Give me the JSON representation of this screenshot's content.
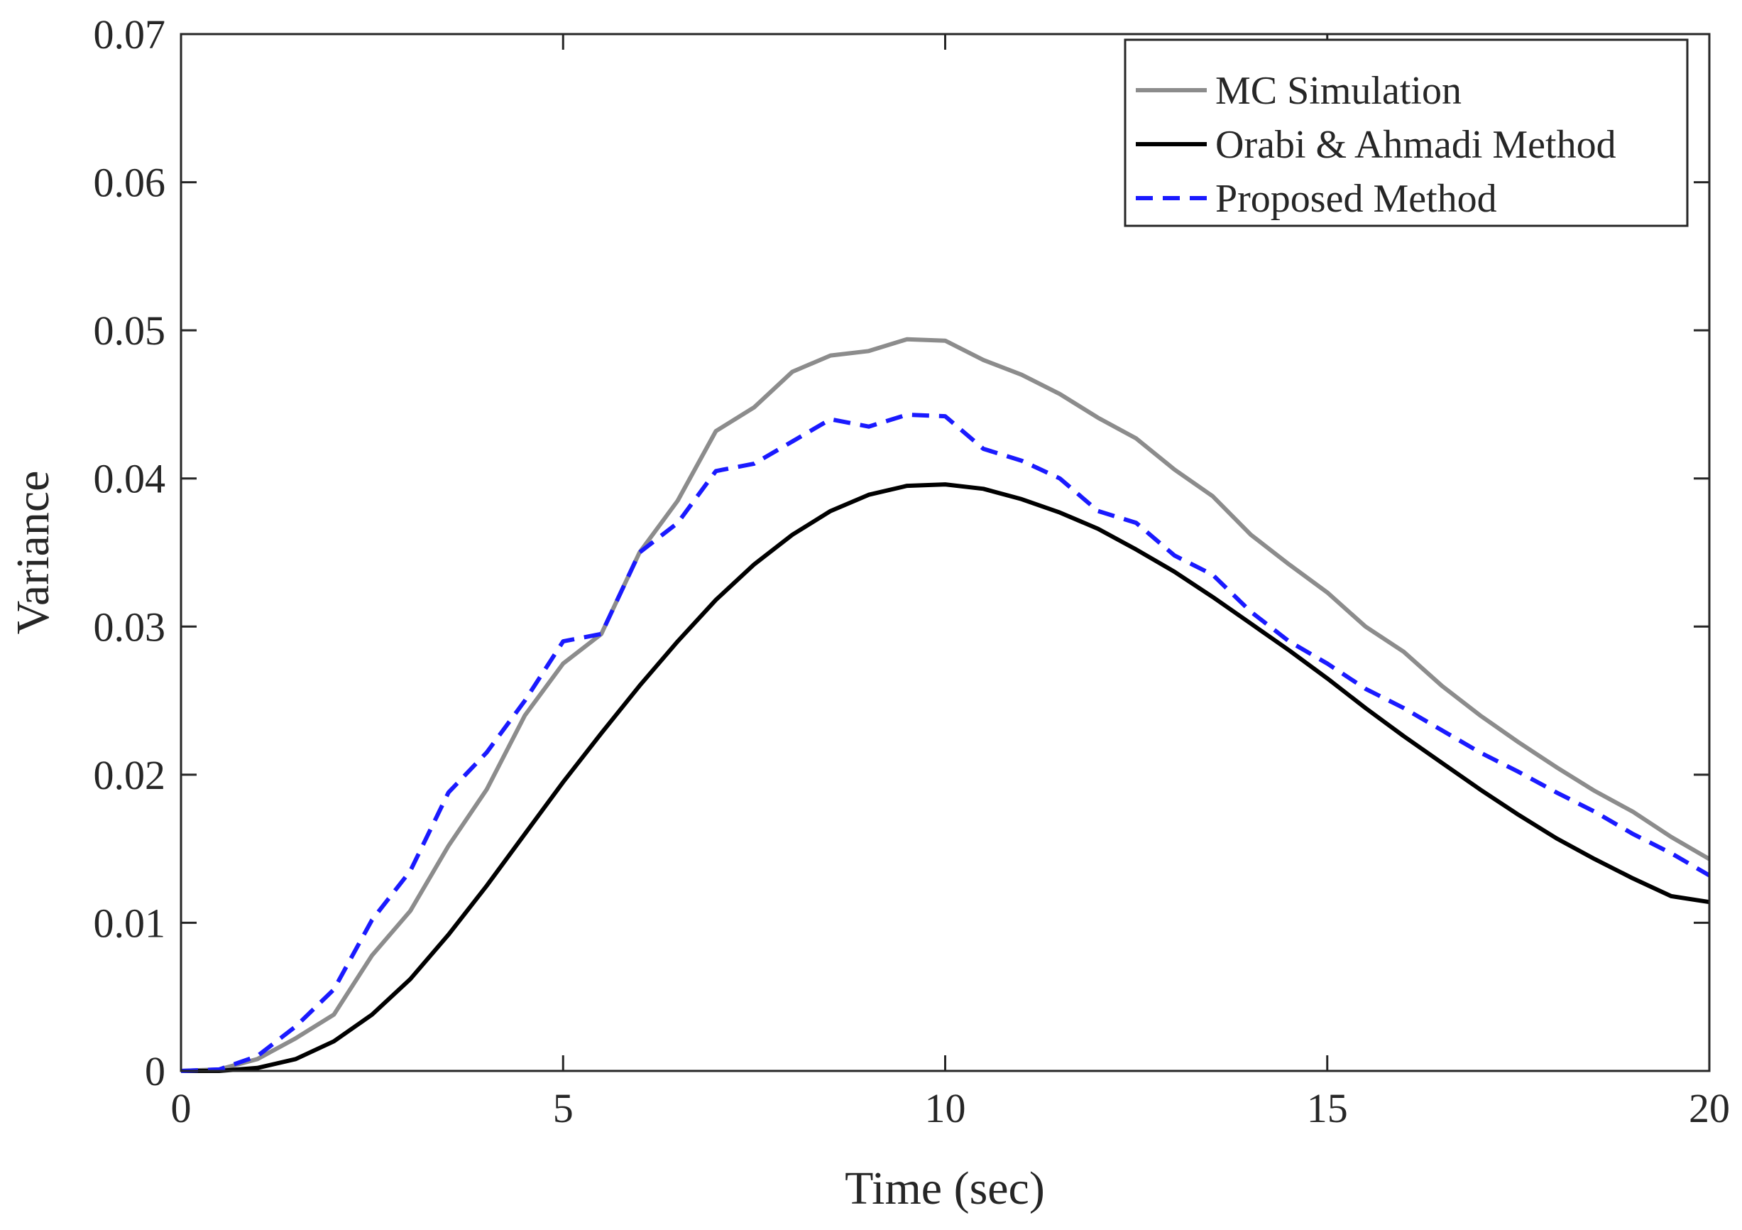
{
  "chart_data": {
    "type": "line",
    "xlabel": "Time (sec)",
    "ylabel": "Variance",
    "xlim": [
      0,
      20
    ],
    "ylim": [
      0,
      0.07
    ],
    "xticks": [
      0,
      5,
      10,
      15,
      20
    ],
    "xtick_labels": [
      "0",
      "5",
      "10",
      "15",
      "20"
    ],
    "yticks": [
      0,
      0.01,
      0.02,
      0.03,
      0.04,
      0.05,
      0.06,
      0.07
    ],
    "ytick_labels": [
      "0",
      "0.01",
      "0.02",
      "0.03",
      "0.04",
      "0.05",
      "0.06",
      "0.07"
    ],
    "grid": false,
    "legend_position": "top-right",
    "series": [
      {
        "name": "MC Simulation",
        "color": "#8c8c8c",
        "style": "solid",
        "x": [
          0,
          0.5,
          1,
          1.5,
          2,
          2.5,
          3,
          3.5,
          4,
          4.5,
          5,
          5.5,
          6,
          6.5,
          7,
          7.5,
          8,
          8.5,
          9,
          9.5,
          10,
          10.5,
          11,
          11.5,
          12,
          12.5,
          13,
          13.5,
          14,
          14.5,
          15,
          15.5,
          16,
          16.5,
          17,
          17.5,
          18,
          18.5,
          19,
          19.5,
          20
        ],
        "y": [
          0,
          0.0001,
          0.0008,
          0.0022,
          0.0038,
          0.0078,
          0.0108,
          0.0152,
          0.019,
          0.024,
          0.0275,
          0.0295,
          0.035,
          0.0385,
          0.0432,
          0.0448,
          0.0472,
          0.0483,
          0.0486,
          0.0494,
          0.0493,
          0.048,
          0.047,
          0.0457,
          0.0441,
          0.0427,
          0.0406,
          0.0388,
          0.0362,
          0.0342,
          0.0323,
          0.03,
          0.0283,
          0.026,
          0.024,
          0.0222,
          0.0205,
          0.0189,
          0.0175,
          0.0158,
          0.0143
        ]
      },
      {
        "name": "Orabi & Ahmadi Method",
        "color": "#000000",
        "style": "solid",
        "x": [
          0,
          0.5,
          1,
          1.5,
          2,
          2.5,
          3,
          3.5,
          4,
          4.5,
          5,
          5.5,
          6,
          6.5,
          7,
          7.5,
          8,
          8.5,
          9,
          9.5,
          10,
          10.5,
          11,
          11.5,
          12,
          12.5,
          13,
          13.5,
          14,
          14.5,
          15,
          15.5,
          16,
          16.5,
          17,
          17.5,
          18,
          18.5,
          19,
          19.5,
          20
        ],
        "y": [
          0,
          0,
          0.0002,
          0.0008,
          0.002,
          0.0038,
          0.0062,
          0.0092,
          0.0125,
          0.016,
          0.0195,
          0.0228,
          0.026,
          0.029,
          0.0318,
          0.0342,
          0.0362,
          0.0378,
          0.0389,
          0.0395,
          0.0396,
          0.0393,
          0.0386,
          0.0377,
          0.0366,
          0.0352,
          0.0337,
          0.032,
          0.0302,
          0.0284,
          0.0265,
          0.0245,
          0.0226,
          0.0208,
          0.019,
          0.0173,
          0.0157,
          0.0143,
          0.013,
          0.0118,
          0.0114
        ]
      },
      {
        "name": "Proposed Method",
        "color": "#1a1aff",
        "style": "dashed",
        "x": [
          0,
          0.5,
          1,
          1.5,
          2,
          2.5,
          3,
          3.5,
          4,
          4.5,
          5,
          5.5,
          6,
          6.5,
          7,
          7.5,
          8,
          8.5,
          9,
          9.5,
          10,
          10.5,
          11,
          11.5,
          12,
          12.5,
          13,
          13.5,
          14,
          14.5,
          15,
          15.5,
          16,
          16.5,
          17,
          17.5,
          18,
          18.5,
          19,
          19.5,
          20
        ],
        "y": [
          0,
          0.0001,
          0.001,
          0.003,
          0.0055,
          0.0102,
          0.0135,
          0.0188,
          0.0215,
          0.025,
          0.029,
          0.0295,
          0.035,
          0.037,
          0.0405,
          0.041,
          0.0425,
          0.044,
          0.0435,
          0.0443,
          0.0442,
          0.042,
          0.0412,
          0.04,
          0.0378,
          0.037,
          0.0348,
          0.0335,
          0.031,
          0.029,
          0.0275,
          0.0258,
          0.0245,
          0.023,
          0.0215,
          0.0202,
          0.0188,
          0.0175,
          0.016,
          0.0147,
          0.0132
        ]
      }
    ]
  }
}
